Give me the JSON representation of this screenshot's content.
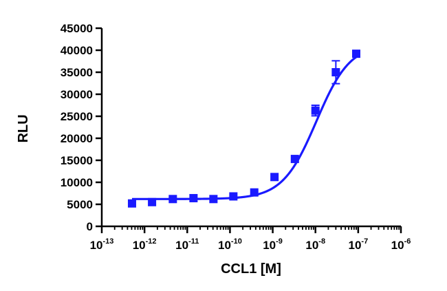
{
  "chart_data": {
    "type": "scatter",
    "title": "",
    "xlabel": "CCL1 [M]",
    "ylabel": "RLU",
    "x_scale": "log",
    "xlim": [
      1e-13,
      1e-06
    ],
    "ylim": [
      0,
      45000
    ],
    "x_ticks": [
      {
        "base": "10",
        "exp": "-13"
      },
      {
        "base": "10",
        "exp": "-12"
      },
      {
        "base": "10",
        "exp": "-11"
      },
      {
        "base": "10",
        "exp": "-10"
      },
      {
        "base": "10",
        "exp": "-9"
      },
      {
        "base": "10",
        "exp": "-8"
      },
      {
        "base": "10",
        "exp": "-7"
      },
      {
        "base": "10",
        "exp": "-6"
      }
    ],
    "y_ticks": [
      "0",
      "5000",
      "10000",
      "15000",
      "20000",
      "25000",
      "30000",
      "35000",
      "40000",
      "45000"
    ],
    "grid": false,
    "color": "#1a1aff",
    "series": [
      {
        "x": [
          5.1e-13,
          1.5e-12,
          4.6e-12,
          1.4e-11,
          4.1e-11,
          1.2e-10,
          3.7e-10,
          1.1e-09,
          3.3e-09,
          1e-08,
          3e-08,
          9e-08
        ],
        "y": [
          5200,
          5500,
          6200,
          6400,
          6200,
          6800,
          7700,
          11200,
          15300,
          26300,
          35000,
          39200
        ],
        "error": [
          0,
          0,
          0,
          0,
          0,
          0,
          0,
          0,
          0,
          1200,
          2600,
          700
        ]
      }
    ],
    "fit": {
      "type": "4PL",
      "bottom": 6200,
      "top": 41500,
      "ec50": 1.05e-08,
      "hill": 1.1,
      "x_range": [
        5.1e-13,
        9e-08
      ]
    }
  }
}
